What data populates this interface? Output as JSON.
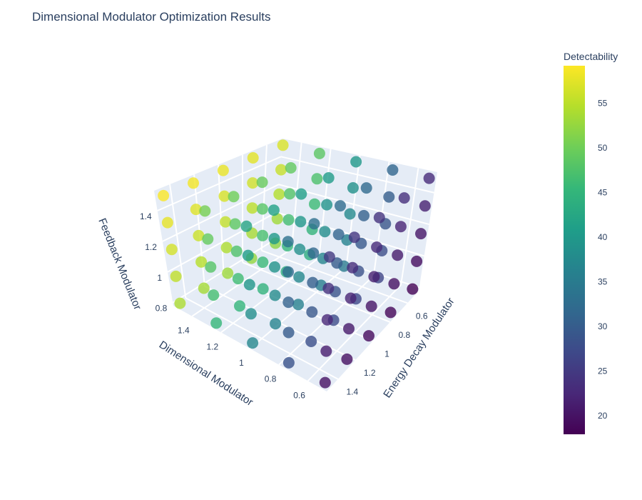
{
  "chart_data": {
    "type": "scatter3d",
    "title": "Dimensional Modulator Optimization Results",
    "x_axis": {
      "label": "Dimensional Modulator",
      "range": [
        0.47,
        1.53
      ],
      "ticks": [
        0.6,
        0.8,
        1,
        1.2,
        1.4
      ],
      "tick_labels": [
        "0.6",
        "0.8",
        "1",
        "1.2",
        "1.4"
      ]
    },
    "y_axis": {
      "label": "Energy Decay Modulator",
      "range": [
        0.47,
        1.53
      ],
      "ticks": [
        0.6,
        0.8,
        1,
        1.2,
        1.4
      ],
      "tick_labels": [
        "0.6",
        "0.8",
        "1",
        "1.2",
        "1.4"
      ]
    },
    "z_axis": {
      "label": "Feedback Modulator",
      "range": [
        0.78,
        1.53
      ],
      "ticks": [
        0.8,
        1,
        1.2,
        1.4
      ],
      "tick_labels": [
        "0.8",
        "1",
        "1.2",
        "1.4"
      ]
    },
    "dimensional_levels": [
      0.5,
      0.75,
      1.0,
      1.25,
      1.5
    ],
    "energy_decay_levels": [
      0.5,
      0.75,
      1.0,
      1.25,
      1.5
    ],
    "feedback_levels": [
      0.8,
      0.975,
      1.15,
      1.325,
      1.5
    ],
    "detectability_note_order": "detectability[dimensional][energy_decay][feedback]",
    "detectability": [
      [
        [
          18,
          19.25,
          20.5,
          21.75,
          23
        ],
        [
          18.5,
          19.75,
          21,
          22.25,
          23.5
        ],
        [
          19,
          20.25,
          21.5,
          22.75,
          24
        ],
        [
          19.5,
          20.75,
          22,
          23.25,
          24.5
        ],
        [
          20,
          21.25,
          22.5,
          23.75,
          25
        ]
      ],
      [
        [
          26.5,
          27.75,
          29,
          30.25,
          31.5
        ],
        [
          27,
          28.25,
          29.5,
          30.75,
          32
        ],
        [
          27.5,
          28.75,
          30,
          31.25,
          32.5
        ],
        [
          28,
          29.25,
          30.5,
          31.75,
          33
        ],
        [
          28.5,
          29.75,
          31,
          32.25,
          33.5
        ]
      ],
      [
        [
          35,
          36.25,
          37.5,
          38.75,
          40
        ],
        [
          35.5,
          36.75,
          38,
          39.25,
          40.5
        ],
        [
          36,
          37.25,
          38.5,
          39.75,
          41
        ],
        [
          36.5,
          37.75,
          39,
          40.25,
          41.5
        ],
        [
          37,
          38.25,
          39.5,
          40.75,
          42
        ]
      ],
      [
        [
          43.5,
          44.75,
          46,
          47.25,
          48.5
        ],
        [
          44,
          45.25,
          46.5,
          47.75,
          49
        ],
        [
          44.5,
          45.75,
          47,
          48.25,
          49.5
        ],
        [
          45,
          46.25,
          47.5,
          48.75,
          50
        ],
        [
          45.5,
          46.75,
          48,
          49.25,
          50.5
        ]
      ],
      [
        [
          52,
          53.25,
          54.5,
          55.75,
          57
        ],
        [
          52.5,
          53.75,
          55,
          56.25,
          57.5
        ],
        [
          53,
          54.25,
          55.5,
          56.75,
          58
        ],
        [
          53.5,
          54.75,
          56,
          57.25,
          58.5
        ],
        [
          54,
          55.25,
          56.5,
          57.75,
          59
        ]
      ]
    ],
    "colorbar": {
      "title": "Detectability",
      "range": [
        17.9,
        59.2
      ],
      "ticks": [
        20,
        25,
        30,
        35,
        40,
        45,
        50,
        55
      ],
      "tick_labels": [
        "20",
        "25",
        "30",
        "35",
        "40",
        "45",
        "50",
        "55"
      ]
    },
    "colorscale": [
      "#440154",
      "#482878",
      "#3e4989",
      "#31688e",
      "#26828e",
      "#1f9e89",
      "#35b779",
      "#6ece58",
      "#b5de2b",
      "#fde725"
    ],
    "marker_opacity": 0.8,
    "scene_background": "#e5ecf6"
  }
}
